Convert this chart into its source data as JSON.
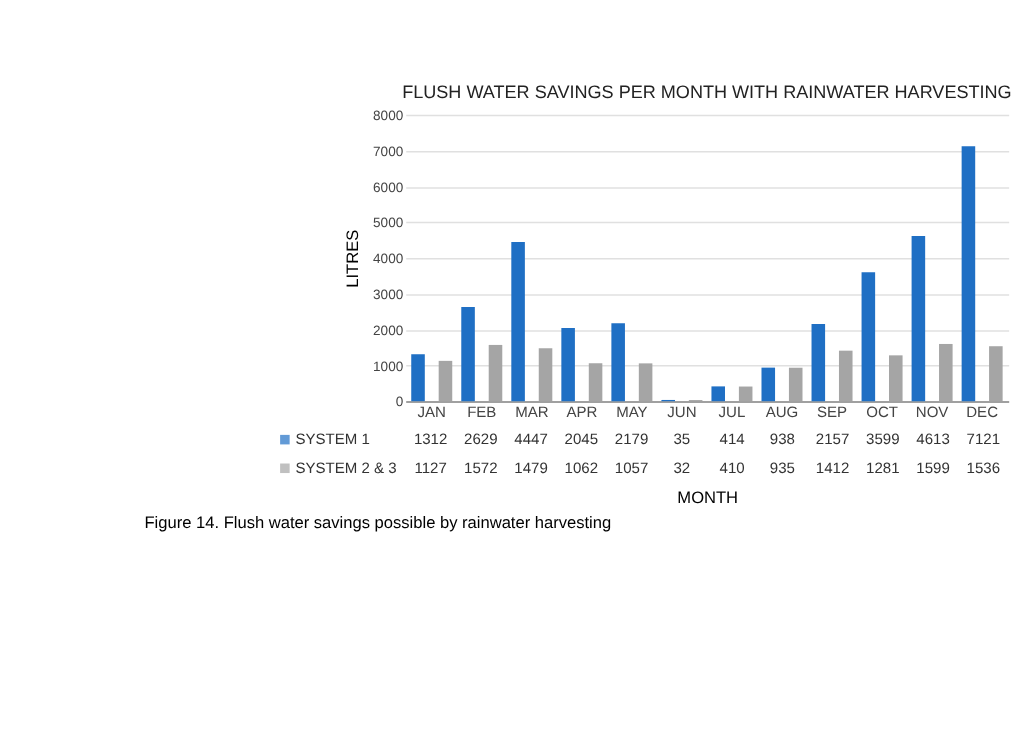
{
  "chart_data": {
    "type": "bar",
    "title": "FLUSH WATER SAVINGS PER MONTH WITH RAINWATER HARVESTING",
    "xlabel": "MONTH",
    "ylabel": "LITRES",
    "categories": [
      "JAN",
      "FEB",
      "MAR",
      "APR",
      "MAY",
      "JUN",
      "JUL",
      "AUG",
      "SEP",
      "OCT",
      "NOV",
      "DEC"
    ],
    "series": [
      {
        "name": "SYSTEM 1",
        "color": "#1f6fc4",
        "values": [
          1312,
          2629,
          4447,
          2045,
          2179,
          35,
          414,
          938,
          2157,
          3599,
          4613,
          7121
        ]
      },
      {
        "name": "SYSTEM 2 & 3",
        "color": "#a5a5a5",
        "values": [
          1127,
          1572,
          1479,
          1062,
          1057,
          32,
          410,
          935,
          1412,
          1281,
          1599,
          1536
        ]
      }
    ],
    "ylim": [
      0,
      8000
    ],
    "yticks": [
      0,
      1000,
      2000,
      3000,
      4000,
      5000,
      6000,
      7000,
      8000
    ],
    "grid": "y",
    "legend": "bottom",
    "data_labels": true,
    "annotations": [
      "Figure 14. Flush water savings possible by rainwater harvesting"
    ]
  }
}
